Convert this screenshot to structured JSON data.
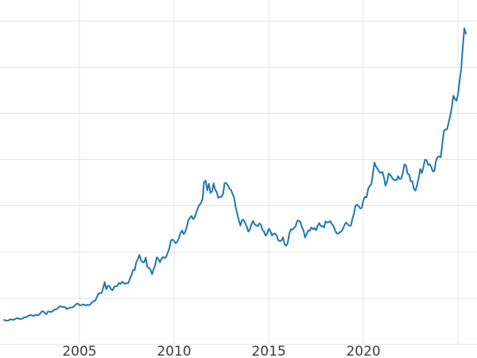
{
  "chart_data": {
    "type": "line",
    "title": "",
    "xlabel": "",
    "ylabel": "",
    "legend": false,
    "grid": true,
    "background_color": "#ffffff",
    "grid_color": "#e3e3e3",
    "tick_label_color": "#3d3d3d",
    "xlim": [
      2000.8,
      2026.0
    ],
    "ylim": [
      0,
      3640
    ],
    "x_ticks": [
      {
        "value": 2005,
        "label": "2005"
      },
      {
        "value": 2010,
        "label": "2010"
      },
      {
        "value": 2015,
        "label": "2015"
      },
      {
        "value": 2020,
        "label": "2020"
      }
    ],
    "x_gridlines": [
      2005,
      2010,
      2015,
      2020,
      2025
    ],
    "y_gridlines": [
      0,
      500,
      1000,
      1500,
      2000,
      2500,
      3000,
      3500
    ],
    "series": [
      {
        "name": "",
        "color": "#1f77b4",
        "line_width": 2,
        "start_year": 2001,
        "interval_months": 1,
        "values": [
          265,
          262,
          258,
          260,
          272,
          270,
          267,
          272,
          284,
          283,
          276,
          276,
          281,
          295,
          294,
          302,
          314,
          318,
          313,
          310,
          319,
          316,
          319,
          333,
          356,
          359,
          340,
          328,
          355,
          356,
          351,
          360,
          379,
          378,
          389,
          407,
          414,
          405,
          406,
          403,
          383,
          392,
          398,
          400,
          405,
          420,
          439,
          442,
          424,
          423,
          434,
          429,
          421,
          430,
          424,
          437,
          456,
          470,
          476,
          510,
          550,
          555,
          557,
          611,
          675,
          596,
          634,
          632,
          598,
          586,
          627,
          629,
          631,
          665,
          655,
          679,
          667,
          655,
          665,
          665,
          713,
          754,
          806,
          803,
          890,
          922,
          968,
          910,
          889,
          889,
          940,
          839,
          829,
          807,
          760,
          816,
          858,
          943,
          924,
          890,
          929,
          946,
          934,
          949,
          996,
          1043,
          1127,
          1134,
          1118,
          1095,
          1113,
          1149,
          1205,
          1233,
          1193,
          1216,
          1271,
          1342,
          1370,
          1391,
          1356,
          1373,
          1424,
          1473,
          1511,
          1529,
          1573,
          1756,
          1772,
          1666,
          1739,
          1640,
          1656,
          1743,
          1674,
          1650,
          1586,
          1599,
          1595,
          1630,
          1745,
          1747,
          1722,
          1688,
          1671,
          1628,
          1593,
          1485,
          1414,
          1343,
          1286,
          1347,
          1348,
          1316,
          1276,
          1221,
          1244,
          1300,
          1336,
          1299,
          1288,
          1279,
          1311,
          1295,
          1237,
          1222,
          1176,
          1200,
          1251,
          1227,
          1178,
          1198,
          1198,
          1181,
          1128,
          1117,
          1125,
          1159,
          1086,
          1068,
          1097,
          1199,
          1246,
          1242,
          1260,
          1276,
          1337,
          1340,
          1326,
          1266,
          1238,
          1157,
          1192,
          1234,
          1231,
          1266,
          1246,
          1260,
          1236,
          1283,
          1314,
          1279,
          1281,
          1264,
          1331,
          1318,
          1325,
          1334,
          1303,
          1281,
          1238,
          1201,
          1198,
          1215,
          1220,
          1250,
          1291,
          1320,
          1301,
          1286,
          1284,
          1359,
          1413,
          1500,
          1511,
          1495,
          1471,
          1479,
          1561,
          1597,
          1591,
          1683,
          1716,
          1732,
          1843,
          1969,
          1922,
          1900,
          1866,
          1858,
          1867,
          1808,
          1718,
          1762,
          1850,
          1835,
          1807,
          1784,
          1777,
          1777,
          1820,
          1787,
          1797,
          1856,
          1948,
          1937,
          1848,
          1837,
          1765,
          1765,
          1681,
          1664,
          1725,
          1797,
          1898,
          1854,
          1912,
          1999,
          1992,
          1942,
          1951,
          1918,
          1871,
          1877,
          1984,
          2026,
          2034,
          2024,
          2160,
          2307,
          2327,
          2326,
          2398,
          2470,
          2568,
          2690,
          2657,
          2636,
          2710,
          2860,
          2985,
          3220,
          3420,
          3360
        ]
      }
    ]
  }
}
